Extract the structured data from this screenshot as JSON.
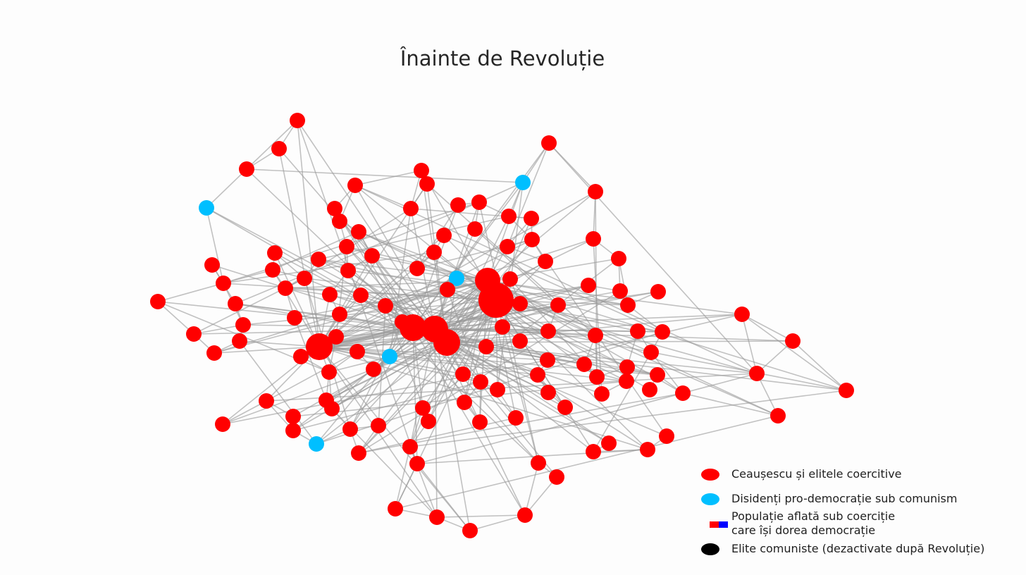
{
  "title": "Înainte de Revoluție",
  "colors": {
    "elite": "#ff0000",
    "dissident": "#00bfff",
    "population_left": "#ff0000",
    "population_right": "#0000ff",
    "communist_elite": "#000000",
    "edge": "#999999"
  },
  "legend": [
    {
      "key": "elite",
      "label": "Ceaușescu și elitele coercitive",
      "lines": []
    },
    {
      "key": "dissident",
      "label": "Disidenți pro-democrație sub comunism",
      "lines": []
    },
    {
      "key": "population",
      "label": "",
      "lines": [
        "Populație aflată sub coerciție",
        "care își dorea democrație"
      ]
    },
    {
      "key": "communist_elite",
      "label": "Elite comuniste (dezactivate după Revoluție)",
      "lines": []
    }
  ],
  "chart_data": {
    "type": "network",
    "node_groups": {
      "elite_count": 124,
      "dissident_count": 6,
      "population_count": 0,
      "communist_elite_count": 0
    },
    "hub_nodes": 6
  }
}
